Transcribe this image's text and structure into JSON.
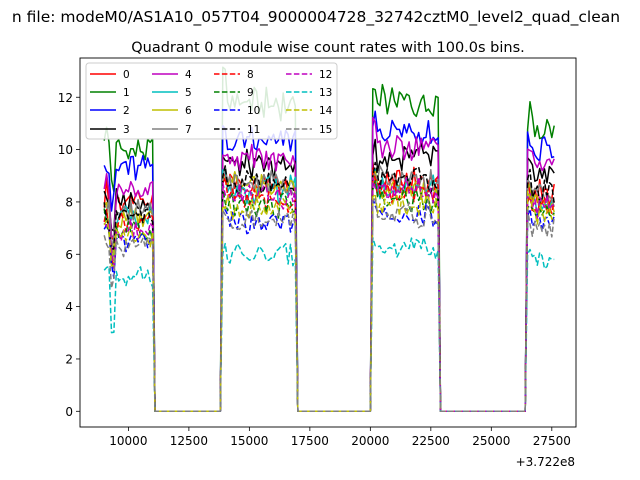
{
  "chart_data": {
    "type": "line",
    "suptitle": "n file: modeM0/AS1A10_057T04_9000004728_32742cztM0_level2_quad_clean",
    "title": "Quadrant 0 module wise count rates with 100.0s bins.",
    "xlabel": "",
    "ylabel": "",
    "offset_text": "+3.722e8",
    "xlim": [
      8000,
      28500
    ],
    "ylim": [
      -0.6,
      13.5
    ],
    "x_ticks": [
      10000,
      12500,
      15000,
      17500,
      20000,
      22500,
      25000,
      27500
    ],
    "x_tick_labels": [
      "10000",
      "12500",
      "15000",
      "17500",
      "20000",
      "22500",
      "25000",
      "27500"
    ],
    "y_ticks": [
      0,
      2,
      4,
      6,
      8,
      10,
      12
    ],
    "y_tick_labels": [
      "0",
      "2",
      "4",
      "6",
      "8",
      "10",
      "12"
    ],
    "legend_location": "upper-left",
    "bin_seconds": 100,
    "on_intervals": [
      [
        9000,
        11000
      ],
      [
        13900,
        16900
      ],
      [
        20100,
        22800
      ],
      [
        26500,
        27600
      ]
    ],
    "series": [
      {
        "name": "0",
        "color": "#ff0000",
        "dash": "solid",
        "levels": [
          8.0,
          8.8,
          8.8,
          8.3
        ]
      },
      {
        "name": "1",
        "color": "#008000",
        "dash": "solid",
        "levels": [
          10.0,
          11.8,
          11.8,
          10.8
        ]
      },
      {
        "name": "2",
        "color": "#0000ff",
        "dash": "solid",
        "levels": [
          9.3,
          10.3,
          10.7,
          9.9
        ]
      },
      {
        "name": "3",
        "color": "#000000",
        "dash": "solid",
        "levels": [
          8.0,
          9.4,
          9.7,
          9.1
        ]
      },
      {
        "name": "4",
        "color": "#bf00bf",
        "dash": "solid",
        "levels": [
          8.5,
          9.7,
          10.2,
          9.4
        ]
      },
      {
        "name": "5",
        "color": "#00bfbf",
        "dash": "solid",
        "levels": [
          7.4,
          8.5,
          8.6,
          8.0
        ]
      },
      {
        "name": "6",
        "color": "#bfbf00",
        "dash": "solid",
        "levels": [
          7.3,
          8.6,
          8.5,
          7.9
        ]
      },
      {
        "name": "7",
        "color": "#808080",
        "dash": "solid",
        "levels": [
          7.6,
          8.7,
          8.8,
          8.2
        ]
      },
      {
        "name": "8",
        "color": "#ff0000",
        "dash": "dashed",
        "levels": [
          7.2,
          8.1,
          8.4,
          7.8
        ]
      },
      {
        "name": "9",
        "color": "#008000",
        "dash": "dashed",
        "levels": [
          6.9,
          7.9,
          8.1,
          7.6
        ]
      },
      {
        "name": "10",
        "color": "#0000ff",
        "dash": "dashed",
        "levels": [
          6.6,
          7.2,
          7.4,
          7.2
        ]
      },
      {
        "name": "11",
        "color": "#000000",
        "dash": "dashed",
        "levels": [
          7.4,
          8.7,
          8.9,
          8.4
        ]
      },
      {
        "name": "12",
        "color": "#bf00bf",
        "dash": "dashed",
        "levels": [
          7.0,
          8.2,
          8.4,
          7.9
        ]
      },
      {
        "name": "13",
        "color": "#00bfbf",
        "dash": "dashed",
        "levels": [
          5.2,
          6.0,
          6.2,
          5.8
        ]
      },
      {
        "name": "14",
        "color": "#bfbf00",
        "dash": "dashed",
        "levels": [
          6.8,
          7.8,
          7.9,
          7.5
        ]
      },
      {
        "name": "15",
        "color": "#808080",
        "dash": "dashed",
        "levels": [
          6.3,
          7.3,
          7.5,
          7.0
        ]
      }
    ]
  }
}
